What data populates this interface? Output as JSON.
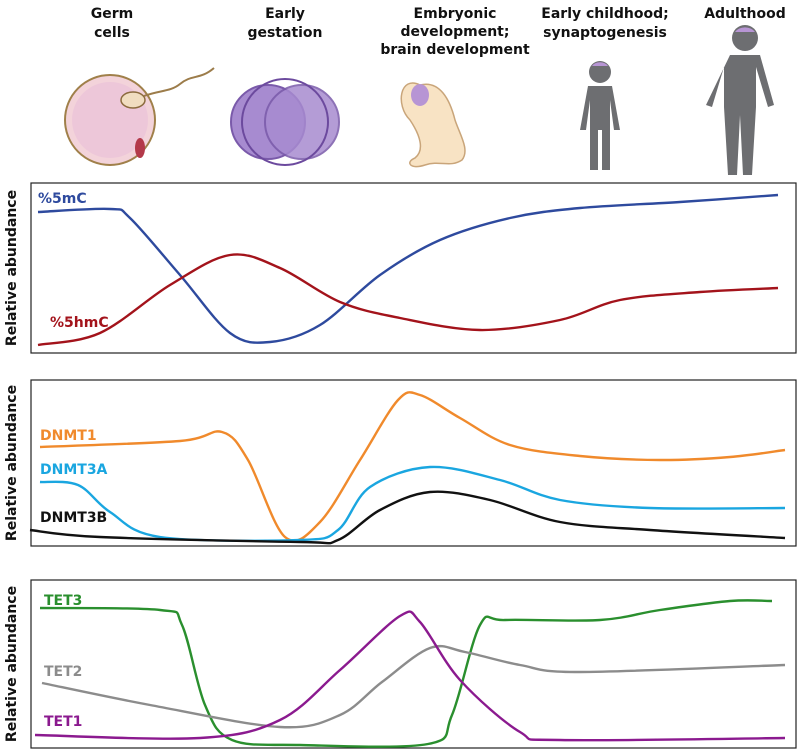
{
  "stages": [
    {
      "lines": [
        "Germ",
        "cells"
      ]
    },
    {
      "lines": [
        "Early",
        "gestation"
      ]
    },
    {
      "lines": [
        "Embryonic",
        "development;",
        "brain  development"
      ]
    },
    {
      "lines": [
        "Early childhood;",
        "synaptogenesis"
      ]
    },
    {
      "lines": [
        "Adulthood"
      ]
    }
  ],
  "panels": [
    {
      "y_label": "Relative abundance",
      "curves": [
        {
          "label": "%5mC"
        },
        {
          "label": "%5hmC"
        }
      ]
    },
    {
      "y_label": "Relative abundance",
      "curves": [
        {
          "label": "DNMT1"
        },
        {
          "label": "DNMT3A"
        },
        {
          "label": "DNMT3B"
        }
      ]
    },
    {
      "y_label": "Relative abundance",
      "curves": [
        {
          "label": "TET3"
        },
        {
          "label": "TET2"
        },
        {
          "label": "TET1"
        }
      ]
    }
  ]
}
